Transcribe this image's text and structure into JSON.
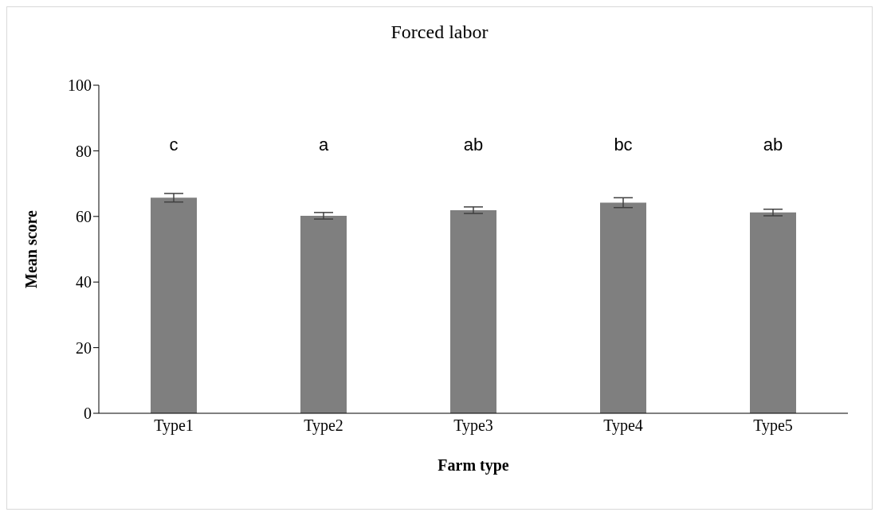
{
  "chart_data": {
    "type": "bar",
    "title": "Forced labor",
    "xlabel": "Farm type",
    "ylabel": "Mean score",
    "categories": [
      "Type1",
      "Type2",
      "Type3",
      "Type4",
      "Type5"
    ],
    "values": [
      65.7,
      60.2,
      61.9,
      64.2,
      61.2
    ],
    "errors": [
      1.3,
      1.0,
      1.0,
      1.5,
      1.0
    ],
    "color": "#7f7f7f",
    "ylim": [
      0,
      100
    ],
    "yticks": [
      0,
      20,
      40,
      60,
      80,
      100
    ],
    "grid": false,
    "legend": false,
    "annotations": [
      "c",
      "a",
      "ab",
      "bc",
      "ab"
    ]
  }
}
